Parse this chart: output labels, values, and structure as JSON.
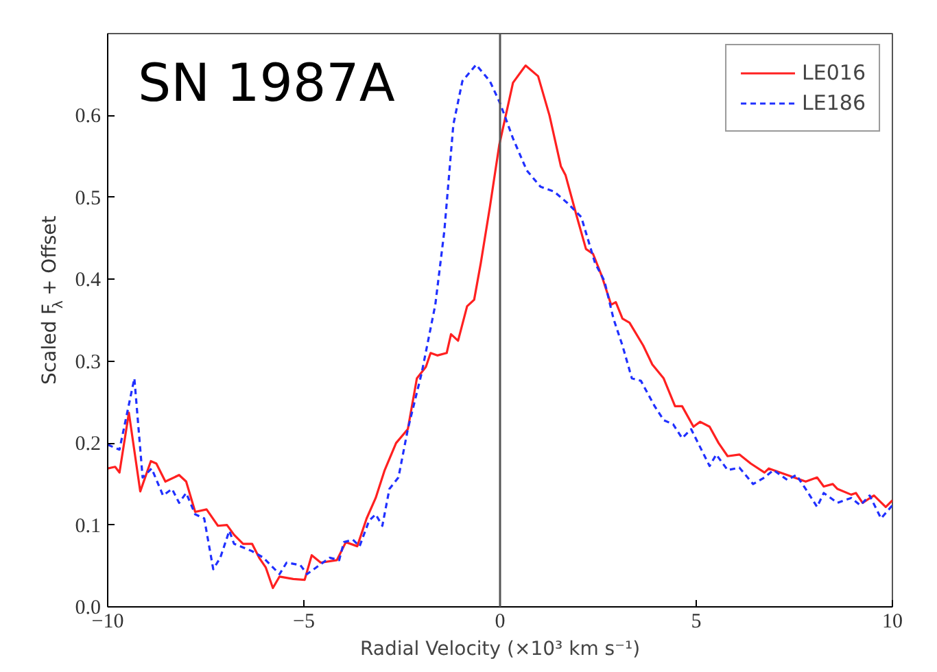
{
  "chart_data": {
    "type": "line",
    "xlabel": "Radial Velocity (×10³ km s⁻¹)",
    "ylabel": "Scaled F$_{λ}$ + Offset",
    "annotations": [
      "SN 1987A"
    ],
    "xlim": [
      -10,
      10
    ],
    "ylim": [
      0,
      0.7
    ],
    "xticks": [
      -10,
      -5,
      0,
      5,
      10
    ],
    "yticks": [
      {
        "value": 0,
        "label": "0.0"
      },
      0.1,
      0.2,
      0.3,
      0.4,
      0.5,
      0.6
    ],
    "grid": false,
    "legend": "top right",
    "ref_lines": [
      {
        "axis": "x",
        "value": 0,
        "color": "#555555"
      }
    ],
    "series": [
      {
        "name": "LE016",
        "color": "#ff2020",
        "line_style": "solid",
        "x": [
          -10,
          -9.81,
          -9.7,
          -9.46,
          -9.17,
          -8.9,
          -8.76,
          -8.53,
          -8.18,
          -8.0,
          -7.77,
          -7.48,
          -7.19,
          -6.96,
          -6.78,
          -6.55,
          -6.32,
          -6.14,
          -5.97,
          -5.79,
          -5.62,
          -5.27,
          -4.98,
          -4.8,
          -4.57,
          -4.16,
          -3.93,
          -3.64,
          -3.4,
          -3.17,
          -2.94,
          -2.65,
          -2.35,
          -2.12,
          -1.89,
          -1.77,
          -1.6,
          -1.36,
          -1.25,
          -1.07,
          -0.84,
          -0.66,
          -0.49,
          -0.26,
          -0.02,
          0.33,
          0.65,
          0.97,
          1.26,
          1.55,
          1.67,
          1.96,
          2.19,
          2.37,
          2.6,
          2.83,
          2.95,
          3.12,
          3.3,
          3.65,
          3.88,
          4.17,
          4.46,
          4.64,
          4.93,
          5.1,
          5.34,
          5.57,
          5.8,
          6.1,
          6.39,
          6.74,
          6.85,
          7.32,
          7.79,
          8.08,
          8.25,
          8.48,
          8.6,
          8.95,
          9.07,
          9.24,
          9.53,
          9.83,
          10.0
        ],
        "values": [
          0.169,
          0.171,
          0.164,
          0.237,
          0.141,
          0.178,
          0.175,
          0.153,
          0.161,
          0.153,
          0.116,
          0.119,
          0.099,
          0.1,
          0.088,
          0.077,
          0.077,
          0.06,
          0.048,
          0.023,
          0.037,
          0.034,
          0.033,
          0.063,
          0.054,
          0.057,
          0.079,
          0.074,
          0.108,
          0.133,
          0.167,
          0.2,
          0.217,
          0.279,
          0.293,
          0.31,
          0.307,
          0.31,
          0.333,
          0.325,
          0.367,
          0.375,
          0.42,
          0.488,
          0.564,
          0.64,
          0.661,
          0.648,
          0.6,
          0.538,
          0.527,
          0.476,
          0.437,
          0.431,
          0.403,
          0.369,
          0.372,
          0.352,
          0.347,
          0.319,
          0.296,
          0.279,
          0.245,
          0.245,
          0.22,
          0.226,
          0.22,
          0.2,
          0.184,
          0.186,
          0.175,
          0.164,
          0.169,
          0.161,
          0.153,
          0.158,
          0.147,
          0.15,
          0.144,
          0.137,
          0.139,
          0.127,
          0.136,
          0.122,
          0.13
        ]
      },
      {
        "name": "LE186",
        "color": "#2030ff",
        "line_style": "dashed",
        "x": [
          -10,
          -9.7,
          -9.32,
          -9.11,
          -8.88,
          -8.59,
          -8.36,
          -8.18,
          -8.0,
          -7.77,
          -7.54,
          -7.31,
          -7.13,
          -6.9,
          -6.78,
          -6.32,
          -6.03,
          -5.62,
          -5.44,
          -5.09,
          -4.92,
          -4.69,
          -4.34,
          -4.1,
          -3.98,
          -3.75,
          -3.58,
          -3.34,
          -3.17,
          -3.0,
          -2.82,
          -2.59,
          -2.35,
          -2.0,
          -1.65,
          -1.42,
          -1.19,
          -0.96,
          -0.61,
          -0.26,
          0.0,
          0.33,
          0.68,
          1.03,
          1.38,
          1.72,
          2.07,
          2.42,
          2.66,
          2.89,
          3.12,
          3.36,
          3.59,
          3.94,
          4.17,
          4.41,
          4.64,
          4.87,
          5.1,
          5.34,
          5.51,
          5.8,
          6.1,
          6.45,
          6.74,
          6.97,
          7.32,
          7.55,
          7.79,
          8.08,
          8.25,
          8.6,
          8.95,
          9.18,
          9.42,
          9.71,
          10.0
        ],
        "values": [
          0.198,
          0.192,
          0.279,
          0.158,
          0.169,
          0.136,
          0.144,
          0.127,
          0.139,
          0.113,
          0.108,
          0.046,
          0.06,
          0.093,
          0.077,
          0.068,
          0.06,
          0.04,
          0.054,
          0.051,
          0.04,
          0.048,
          0.06,
          0.057,
          0.079,
          0.082,
          0.074,
          0.105,
          0.113,
          0.099,
          0.144,
          0.158,
          0.217,
          0.285,
          0.369,
          0.459,
          0.589,
          0.642,
          0.662,
          0.642,
          0.615,
          0.572,
          0.533,
          0.513,
          0.507,
          0.493,
          0.476,
          0.42,
          0.398,
          0.352,
          0.319,
          0.279,
          0.276,
          0.245,
          0.228,
          0.223,
          0.206,
          0.217,
          0.195,
          0.172,
          0.186,
          0.167,
          0.17,
          0.15,
          0.158,
          0.167,
          0.155,
          0.161,
          0.144,
          0.122,
          0.139,
          0.127,
          0.133,
          0.124,
          0.136,
          0.108,
          0.124
        ]
      }
    ]
  }
}
